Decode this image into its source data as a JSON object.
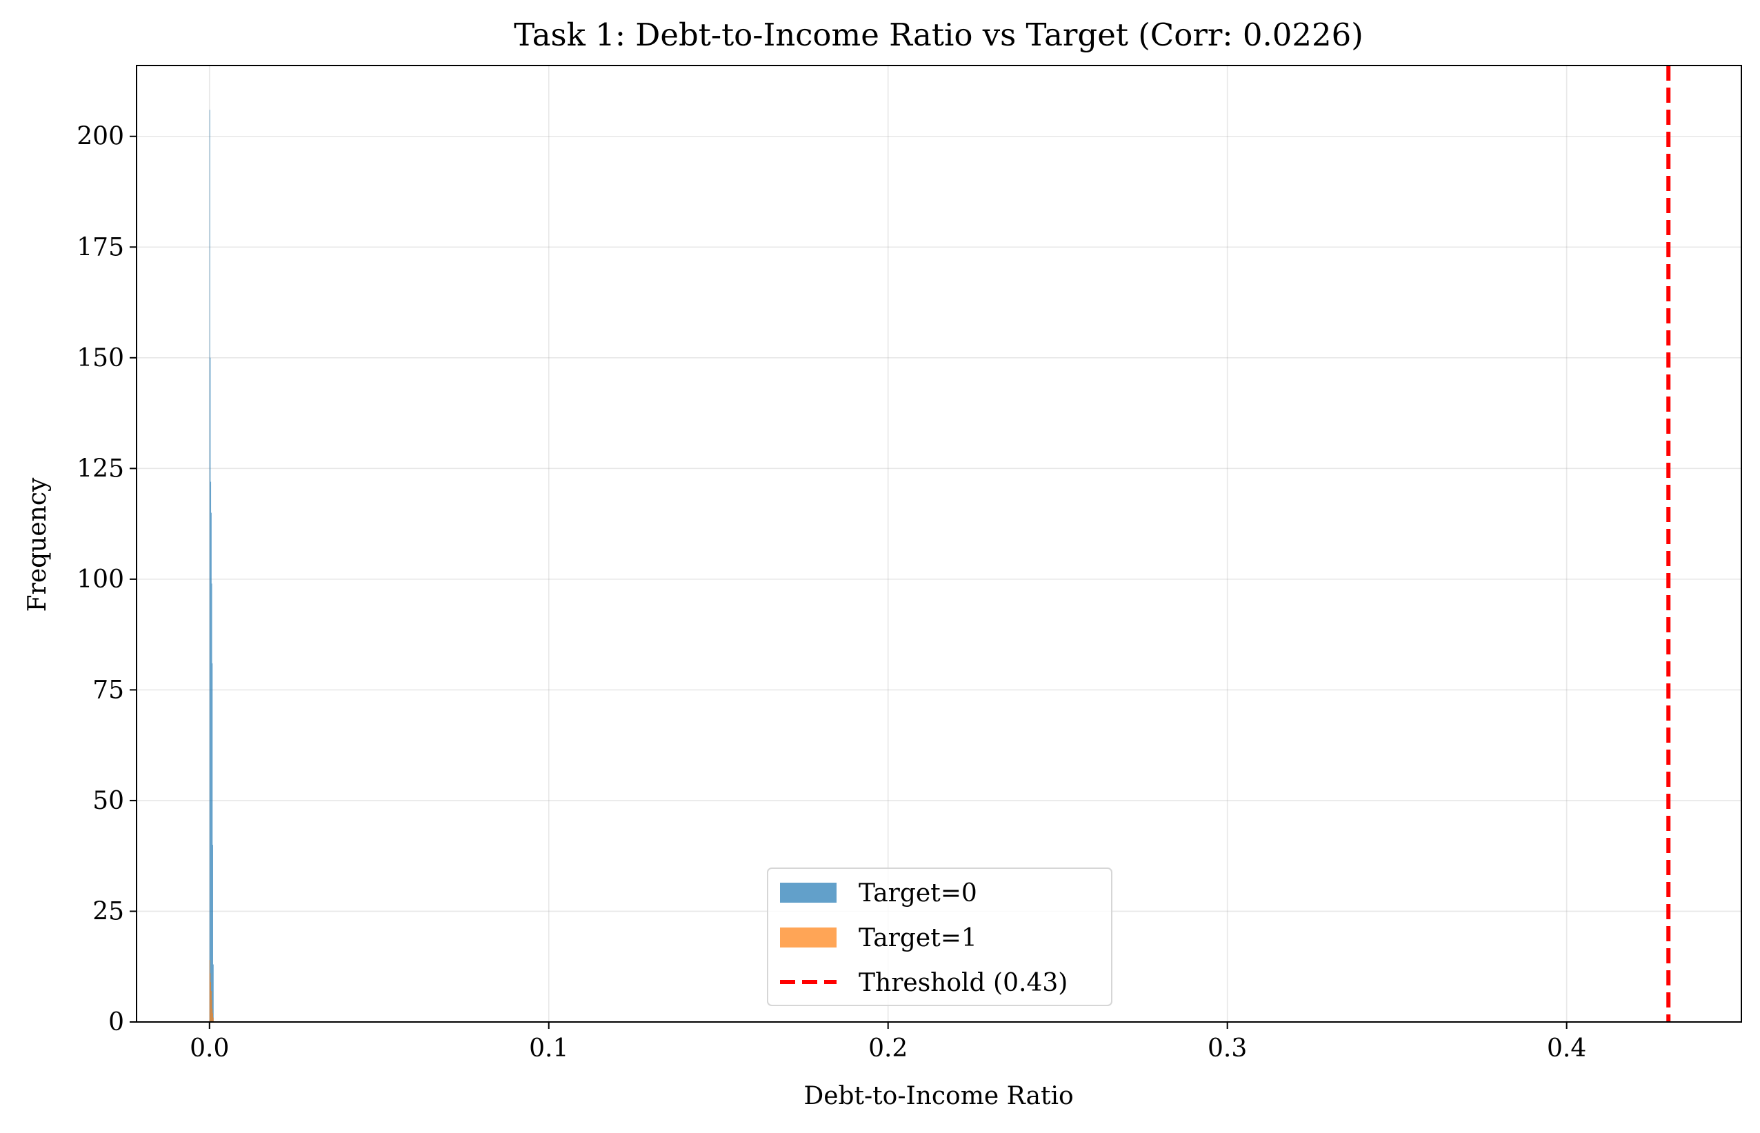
{
  "chart_data": {
    "type": "histogram",
    "title": "Task 1: Debt-to-Income Ratio vs Target (Corr: 0.0226)",
    "xlabel": "Debt-to-Income Ratio",
    "ylabel": "Frequency",
    "xlim": [
      -0.0215,
      0.4515
    ],
    "ylim": [
      0,
      216
    ],
    "x_ticks": [
      0.0,
      0.1,
      0.2,
      0.3,
      0.4
    ],
    "x_tick_labels": [
      "0.0",
      "0.1",
      "0.2",
      "0.3",
      "0.4"
    ],
    "y_ticks": [
      0,
      25,
      50,
      75,
      100,
      125,
      150,
      175,
      200
    ],
    "y_tick_labels": [
      "0",
      "25",
      "50",
      "75",
      "100",
      "125",
      "150",
      "175",
      "200"
    ],
    "grid": true,
    "legend_position": "bottom-center",
    "series": [
      {
        "name": "Target=0",
        "color": "#1f77b4",
        "alpha": 0.7,
        "bins": [
          {
            "x0": 0.0,
            "x1": 0.00015,
            "count": 206
          },
          {
            "x0": 0.00015,
            "x1": 0.0003,
            "count": 150
          },
          {
            "x0": 0.0003,
            "x1": 0.00045,
            "count": 122
          },
          {
            "x0": 0.00045,
            "x1": 0.0006,
            "count": 115
          },
          {
            "x0": 0.0006,
            "x1": 0.00075,
            "count": 99
          },
          {
            "x0": 0.00075,
            "x1": 0.0009,
            "count": 81
          },
          {
            "x0": 0.0009,
            "x1": 0.00105,
            "count": 40
          },
          {
            "x0": 0.00105,
            "x1": 0.0012,
            "count": 13
          }
        ]
      },
      {
        "name": "Target=1",
        "color": "#ff7f0e",
        "alpha": 0.7,
        "bins": [
          {
            "x0": 0.0,
            "x1": 0.00015,
            "count": 14
          },
          {
            "x0": 0.00015,
            "x1": 0.0003,
            "count": 11
          },
          {
            "x0": 0.0003,
            "x1": 0.00045,
            "count": 9
          },
          {
            "x0": 0.00045,
            "x1": 0.0006,
            "count": 7
          },
          {
            "x0": 0.0006,
            "x1": 0.00075,
            "count": 5
          },
          {
            "x0": 0.00075,
            "x1": 0.0009,
            "count": 3
          },
          {
            "x0": 0.0009,
            "x1": 0.00105,
            "count": 2
          },
          {
            "x0": 0.00105,
            "x1": 0.0012,
            "count": 1
          }
        ]
      }
    ],
    "threshold": {
      "name": "Threshold (0.43)",
      "value": 0.43,
      "color": "#ff0000",
      "style": "dashed"
    }
  }
}
